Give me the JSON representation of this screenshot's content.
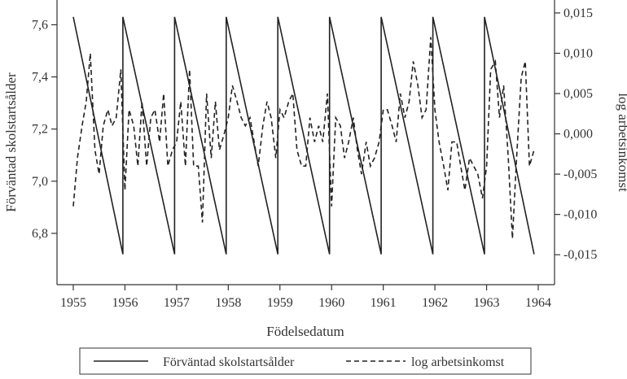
{
  "chart_data": {
    "type": "line",
    "xlabel": "Födelsedatum",
    "ylabel_left": "Förväntad skolstartsålder",
    "ylabel_right": "log arbetsinkomst",
    "xlim": [
      1955,
      1964
    ],
    "ylim_left": [
      6.65,
      7.67
    ],
    "ylim_right": [
      -0.0172,
      0.0158
    ],
    "x_ticks": [
      1955,
      1956,
      1957,
      1958,
      1959,
      1960,
      1961,
      1962,
      1963,
      1964
    ],
    "x_tick_labels": [
      "1955",
      "1956",
      "1957",
      "1958",
      "1959",
      "1960",
      "1961",
      "1962",
      "1963",
      "1964"
    ],
    "y_left_ticks": [
      6.8,
      7.0,
      7.2,
      7.4,
      7.6
    ],
    "y_left_tick_labels": [
      "6,8",
      "7,0",
      "7,2",
      "7,4",
      "7,6"
    ],
    "y_right_ticks": [
      -0.015,
      -0.01,
      -0.005,
      0.0,
      0.005,
      0.01,
      0.015
    ],
    "y_right_tick_labels": [
      "-0,015",
      "-0,010",
      "-0,005",
      "0,000",
      "0,005",
      "0,010",
      "0,015"
    ],
    "legend_position": "bottom",
    "grid": false,
    "series": [
      {
        "name": "Förväntad skolstartsålder",
        "axis": "left",
        "style": "solid",
        "color": "#222222",
        "x": [
          1955,
          1955.96,
          1955.96,
          1956.96,
          1956.96,
          1957.96,
          1957.96,
          1958.96,
          1958.96,
          1959.96,
          1959.96,
          1960.96,
          1960.96,
          1961.96,
          1961.96,
          1962.96,
          1962.96,
          1963.92
        ],
        "values": [
          7.63,
          6.72,
          7.63,
          6.72,
          7.63,
          6.72,
          7.63,
          6.72,
          7.63,
          6.72,
          7.63,
          6.72,
          7.63,
          6.72,
          7.63,
          6.72,
          7.63,
          6.72
        ]
      },
      {
        "name": "log arbetsinkomst",
        "axis": "right",
        "style": "dashed",
        "color": "#222222",
        "x": [
          1955.0,
          1955.08,
          1955.17,
          1955.25,
          1955.33,
          1955.42,
          1955.5,
          1955.58,
          1955.67,
          1955.75,
          1955.83,
          1955.92,
          1956.0,
          1956.08,
          1956.17,
          1956.25,
          1956.33,
          1956.42,
          1956.5,
          1956.58,
          1956.67,
          1956.75,
          1956.83,
          1956.92,
          1957.0,
          1957.08,
          1957.17,
          1957.25,
          1957.33,
          1957.42,
          1957.5,
          1957.58,
          1957.67,
          1957.75,
          1957.83,
          1957.92,
          1958.0,
          1958.08,
          1958.17,
          1958.25,
          1958.33,
          1958.42,
          1958.5,
          1958.58,
          1958.67,
          1958.75,
          1958.83,
          1958.92,
          1959.0,
          1959.08,
          1959.17,
          1959.25,
          1959.33,
          1959.42,
          1959.5,
          1959.58,
          1959.67,
          1959.75,
          1959.83,
          1959.92,
          1960.0,
          1960.08,
          1960.17,
          1960.25,
          1960.33,
          1960.42,
          1960.5,
          1960.58,
          1960.67,
          1960.75,
          1960.83,
          1960.92,
          1961.0,
          1961.08,
          1961.17,
          1961.25,
          1961.33,
          1961.42,
          1961.5,
          1961.58,
          1961.67,
          1961.75,
          1961.83,
          1961.92,
          1962.0,
          1962.08,
          1962.17,
          1962.25,
          1962.33,
          1962.42,
          1962.5,
          1962.58,
          1962.67,
          1962.75,
          1962.83,
          1962.92,
          1963.0,
          1963.08,
          1963.17,
          1963.25,
          1963.33,
          1963.42,
          1963.5,
          1963.58,
          1963.67,
          1963.75,
          1963.83,
          1963.92
        ],
        "values": [
          -0.009,
          -0.003,
          0.001,
          0.004,
          0.01,
          -0.002,
          -0.005,
          0.001,
          0.003,
          0.001,
          0.002,
          0.008,
          -0.007,
          0.003,
          0.001,
          -0.004,
          0.004,
          -0.004,
          0.002,
          0.003,
          -0.001,
          0.005,
          -0.004,
          -0.002,
          -0.001,
          0.004,
          -0.004,
          0.008,
          -0.004,
          -0.004,
          -0.011,
          0.005,
          -0.003,
          0.004,
          -0.002,
          0.0,
          0.002,
          0.006,
          0.004,
          0.002,
          0.001,
          0.002,
          -0.001,
          -0.004,
          0.001,
          0.004,
          0.002,
          -0.003,
          0.003,
          0.002,
          0.004,
          0.005,
          -0.002,
          -0.004,
          -0.004,
          0.002,
          -0.001,
          0.001,
          -0.001,
          0.005,
          -0.009,
          0.002,
          0.001,
          -0.003,
          -0.001,
          0.002,
          -0.002,
          -0.005,
          -0.001,
          -0.004,
          -0.003,
          -0.001,
          0.003,
          0.003,
          0.001,
          -0.001,
          0.005,
          0.002,
          0.004,
          0.009,
          0.006,
          0.002,
          0.003,
          0.012,
          0.003,
          -0.001,
          -0.004,
          -0.007,
          -0.001,
          -0.001,
          -0.004,
          -0.007,
          -0.003,
          -0.004,
          -0.005,
          -0.008,
          -0.004,
          0.008,
          0.009,
          0.002,
          0.006,
          -0.003,
          -0.013,
          -0.003,
          0.007,
          0.009,
          -0.004,
          -0.002
        ]
      }
    ]
  }
}
